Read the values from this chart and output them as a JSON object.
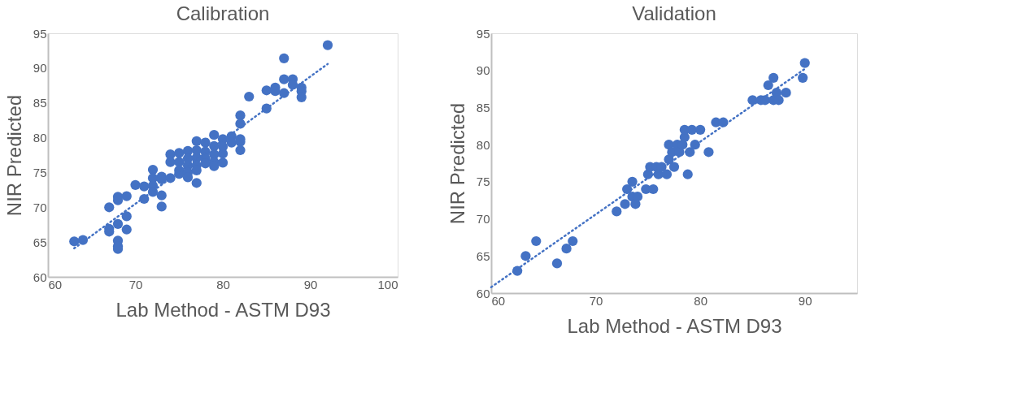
{
  "chart_data": [
    {
      "type": "scatter",
      "title": "Calibration",
      "xlabel": "Lab Method - ASTM D93",
      "ylabel": "NIR Predicted",
      "xlim": [
        60,
        100
      ],
      "xticks": [
        60,
        70,
        80,
        90,
        100
      ],
      "ylim": [
        60,
        95
      ],
      "yticks": [
        60,
        65,
        70,
        75,
        80,
        85,
        90,
        95
      ],
      "grid": false,
      "legend": false,
      "series": [
        {
          "type": "scatter",
          "marker": "circle",
          "color": "#4472c4",
          "x": [
            63,
            64,
            67,
            67,
            67,
            68,
            68,
            68,
            68,
            68,
            68,
            69,
            69,
            69,
            70,
            71,
            71,
            72,
            72,
            72,
            72,
            73,
            73,
            73,
            73,
            74,
            74,
            74,
            75,
            75,
            75,
            75,
            76,
            76,
            76,
            76,
            76,
            77,
            77,
            77,
            77,
            77,
            77,
            78,
            78,
            78,
            78,
            79,
            79,
            79,
            79,
            79,
            80,
            80,
            80,
            80,
            81,
            81,
            82,
            82,
            82,
            82,
            82,
            83,
            85,
            85,
            86,
            86,
            87,
            87,
            87,
            88,
            88,
            89,
            89,
            89,
            92
          ],
          "values": [
            65.1,
            65.3,
            70,
            66.9,
            66.5,
            71.5,
            71,
            67.6,
            65.2,
            64.4,
            64,
            71.6,
            68.7,
            66.8,
            73.2,
            73,
            71.2,
            75.4,
            74.2,
            73.1,
            72.2,
            74.4,
            74,
            71.7,
            70.1,
            77.6,
            76.5,
            74.2,
            77.8,
            76.5,
            75.3,
            74.8,
            78.1,
            77,
            76,
            75,
            74.3,
            79.5,
            78.2,
            77.1,
            76,
            75.3,
            73.5,
            79.3,
            78,
            77,
            76.3,
            80.4,
            78.8,
            77.6,
            76.5,
            75.9,
            79.8,
            78.7,
            77.7,
            76.4,
            80.2,
            79.3,
            83.2,
            82,
            79.8,
            79.4,
            78.2,
            85.9,
            86.8,
            84.2,
            87.2,
            86.7,
            91.4,
            88.4,
            86.4,
            88.4,
            87.6,
            87.2,
            86.7,
            85.8,
            93.3
          ]
        },
        {
          "type": "line",
          "marker": "none",
          "color": "#4472c4",
          "line_style": "dotted",
          "x": [
            63,
            92
          ],
          "values": [
            64.1,
            90.6
          ]
        }
      ]
    },
    {
      "type": "scatter",
      "title": "Validation",
      "xlabel": "Lab Method - ASTM D93",
      "ylabel": "NIR Predicted",
      "xlim": [
        60,
        95
      ],
      "xticks": [
        60,
        70,
        80,
        90
      ],
      "ylim": [
        60,
        95
      ],
      "yticks": [
        60,
        65,
        70,
        75,
        80,
        85,
        90,
        95
      ],
      "grid": false,
      "legend": false,
      "series": [
        {
          "type": "scatter",
          "marker": "circle",
          "color": "#4472c4",
          "x": [
            62.5,
            63.3,
            64.3,
            66.3,
            67.2,
            67.8,
            72,
            72.8,
            73,
            73.5,
            73.5,
            73.8,
            74,
            74.8,
            75,
            75.2,
            75.5,
            75.8,
            76,
            76.3,
            76.8,
            77,
            77,
            77.3,
            77.5,
            77.8,
            78,
            78.3,
            78.5,
            78.5,
            78.8,
            79,
            79.2,
            79.5,
            80,
            80.8,
            81.5,
            82.2,
            85,
            85.8,
            86.2,
            86.5,
            87,
            87,
            87.3,
            87.5,
            88.2,
            89.8,
            90
          ],
          "values": [
            63,
            65,
            67,
            64,
            66,
            67,
            71,
            72,
            74,
            75,
            73,
            72,
            73,
            74,
            76,
            77,
            74,
            77,
            76,
            77,
            76,
            80,
            78,
            79,
            77,
            80,
            79,
            80,
            81,
            82,
            76,
            79,
            82,
            80,
            82,
            79,
            83,
            83,
            86,
            86,
            86,
            88,
            89,
            86,
            87,
            86,
            87,
            89,
            91
          ]
        },
        {
          "type": "line",
          "marker": "none",
          "color": "#4472c4",
          "line_style": "dotted",
          "x": [
            60,
            90
          ],
          "values": [
            60.8,
            90.2
          ]
        }
      ]
    }
  ]
}
